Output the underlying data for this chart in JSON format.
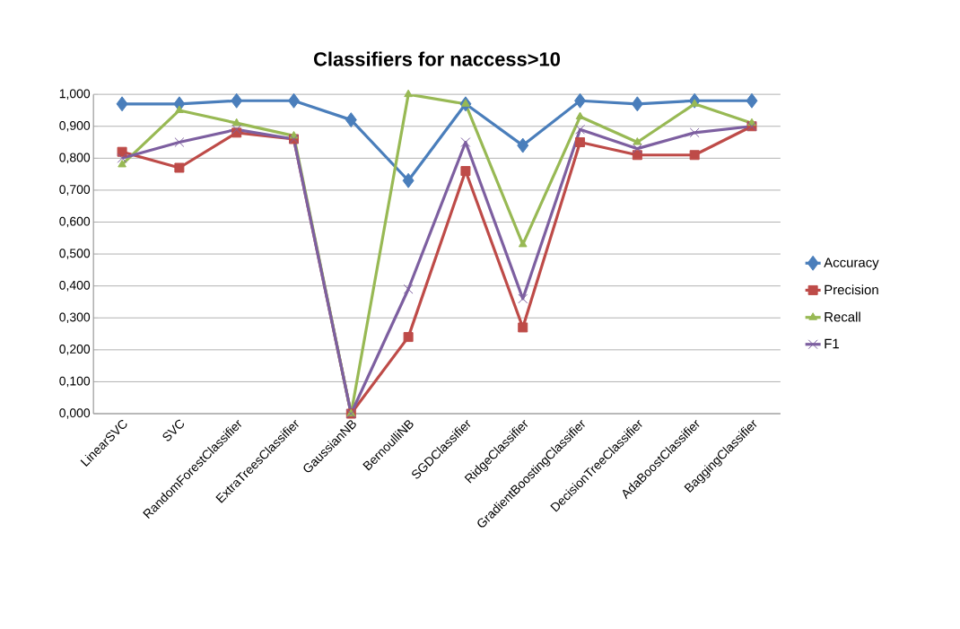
{
  "chart_data": {
    "type": "line",
    "title": "Classifiers for naccess>10",
    "categories": [
      "LinearSVC",
      "SVC",
      "RandomForestClassifier",
      "ExtraTreesClassifier",
      "GaussianNB",
      "BernoulliNB",
      "SGDClassifier",
      "RidgeClassifier",
      "GradientBoostingClassifier",
      "DecisionTreeClassifier",
      "AdaBoostClassifier",
      "BaggingClassifier"
    ],
    "series": [
      {
        "name": "Accuracy",
        "color": "#4a7ebb",
        "marker": "diamond",
        "values": [
          0.97,
          0.97,
          0.98,
          0.98,
          0.92,
          0.73,
          0.97,
          0.84,
          0.98,
          0.97,
          0.98,
          0.98
        ]
      },
      {
        "name": "Precision",
        "color": "#be4b48",
        "marker": "square",
        "values": [
          0.82,
          0.77,
          0.88,
          0.86,
          0.0,
          0.24,
          0.76,
          0.27,
          0.85,
          0.81,
          0.81,
          0.9
        ]
      },
      {
        "name": "Recall",
        "color": "#98b954",
        "marker": "triangle",
        "values": [
          0.78,
          0.95,
          0.91,
          0.87,
          0.0,
          1.0,
          0.97,
          0.53,
          0.93,
          0.85,
          0.97,
          0.91
        ]
      },
      {
        "name": "F1",
        "color": "#7d5fa0",
        "marker": "cross",
        "values": [
          0.8,
          0.85,
          0.89,
          0.86,
          0.0,
          0.39,
          0.85,
          0.36,
          0.89,
          0.83,
          0.88,
          0.9
        ]
      }
    ],
    "ylim": [
      0,
      1
    ],
    "yticks": [
      {
        "value": 0,
        "label": "0,000"
      },
      {
        "value": 0.1,
        "label": "0,100"
      },
      {
        "value": 0.2,
        "label": "0,200"
      },
      {
        "value": 0.3,
        "label": "0,300"
      },
      {
        "value": 0.4,
        "label": "0,400"
      },
      {
        "value": 0.5,
        "label": "0,500"
      },
      {
        "value": 0.6,
        "label": "0,600"
      },
      {
        "value": 0.7,
        "label": "0,700"
      },
      {
        "value": 0.8,
        "label": "0,800"
      },
      {
        "value": 0.9,
        "label": "0,900"
      },
      {
        "value": 1,
        "label": "1,000"
      }
    ],
    "grid": "y",
    "legend": "right",
    "line_style": "solid"
  }
}
